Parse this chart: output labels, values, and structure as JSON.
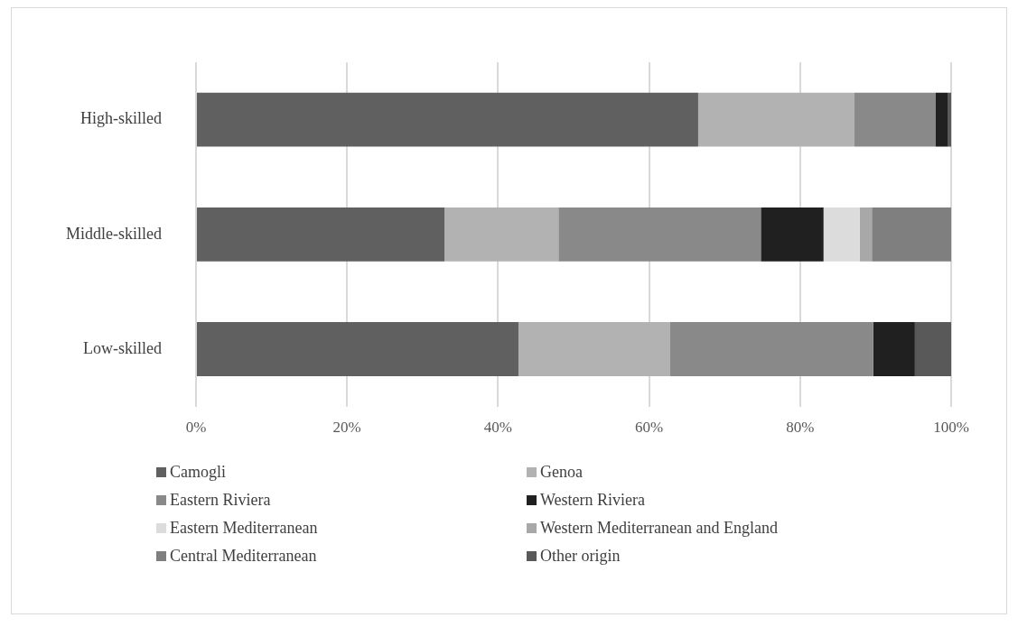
{
  "chart_data": {
    "type": "bar",
    "orientation": "horizontal",
    "stacked": true,
    "categories": [
      "High-skilled",
      "Middle-skilled",
      "Low-skilled"
    ],
    "series": [
      {
        "name": "Camogli",
        "color": "#606060",
        "values": [
          66.5,
          32.9,
          42.7
        ]
      },
      {
        "name": "Genoa",
        "color": "#b2b2b2",
        "values": [
          20.7,
          15.1,
          20.1
        ]
      },
      {
        "name": "Eastern Riviera",
        "color": "#898989",
        "values": [
          10.7,
          26.8,
          26.9
        ]
      },
      {
        "name": "Western Riviera",
        "color": "#202020",
        "values": [
          1.7,
          8.3,
          5.5
        ]
      },
      {
        "name": "Eastern Mediterranean",
        "color": "#dcdcdc",
        "values": [
          0,
          4.8,
          0
        ]
      },
      {
        "name": "Western Mediterranean and England",
        "color": "#a8a8a8",
        "values": [
          0,
          1.6,
          0
        ]
      },
      {
        "name": "Central Mediterranean",
        "color": "#7f7f7f",
        "values": [
          0,
          10.5,
          0
        ]
      },
      {
        "name": "Other origin",
        "color": "#595959",
        "values": [
          0.4,
          0,
          4.8
        ]
      }
    ],
    "xlim": [
      0,
      100
    ],
    "xticks": [
      {
        "value": 0,
        "label": "0%"
      },
      {
        "value": 20,
        "label": "20%"
      },
      {
        "value": 40,
        "label": "40%"
      },
      {
        "value": 60,
        "label": "60%"
      },
      {
        "value": 80,
        "label": "80%"
      },
      {
        "value": 100,
        "label": "100%"
      }
    ],
    "grid": "x",
    "legend": "bottom"
  }
}
